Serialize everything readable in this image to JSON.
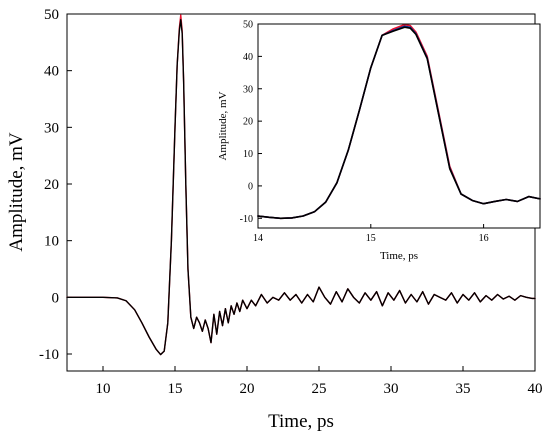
{
  "chart_data": [
    {
      "id": "main",
      "type": "line",
      "xlabel": "Time, ps",
      "ylabel": "Amplitude, mV",
      "xlim": [
        7.5,
        40
      ],
      "ylim": [
        -13,
        50
      ],
      "xticks": [
        10,
        15,
        20,
        25,
        30,
        35,
        40
      ],
      "yticks": [
        -10,
        0,
        10,
        20,
        30,
        40,
        50
      ],
      "xtick_labels": [
        "10",
        "15",
        "20",
        "25",
        "30",
        "35",
        "40"
      ],
      "ytick_labels": [
        "-10",
        "0",
        "10",
        "20",
        "30",
        "40",
        "50"
      ],
      "series": [
        {
          "color": "#e8112d",
          "x": [
            7.5,
            10,
            11,
            11.6,
            12.2,
            12.7,
            13.2,
            13.7,
            14.0,
            14.25,
            14.5,
            14.75,
            15.0,
            15.15,
            15.3,
            15.4,
            15.5,
            15.6,
            15.75,
            15.9,
            16.1,
            16.3,
            16.5,
            16.7,
            16.9,
            17.1,
            17.3,
            17.5,
            17.7,
            17.9,
            18.1,
            18.3,
            18.5,
            18.7,
            18.9,
            19.1,
            19.3,
            19.5,
            19.7,
            20.0,
            20.3,
            20.6,
            21.0,
            21.4,
            21.8,
            22.2,
            22.6,
            23.0,
            23.4,
            23.8,
            24.2,
            24.6,
            25.0,
            25.4,
            25.8,
            26.2,
            26.6,
            27.0,
            27.4,
            27.8,
            28.2,
            28.6,
            29.0,
            29.4,
            29.8,
            30.2,
            30.6,
            31.0,
            31.4,
            31.8,
            32.2,
            32.6,
            33.0,
            33.4,
            33.8,
            34.2,
            34.6,
            35.0,
            35.4,
            35.8,
            36.2,
            36.6,
            37.0,
            37.4,
            37.8,
            38.2,
            38.6,
            39.0,
            39.4,
            39.8,
            40.0
          ],
          "y": [
            0,
            0,
            -0.1,
            -0.6,
            -2.2,
            -4.5,
            -7.0,
            -9.2,
            -10.1,
            -9.5,
            -4.5,
            10.0,
            30.0,
            41.0,
            47.5,
            49.8,
            47.0,
            38.0,
            20.0,
            5.0,
            -3.5,
            -5.5,
            -3.5,
            -4.5,
            -6.0,
            -4.0,
            -5.5,
            -8.0,
            -3.0,
            -6.5,
            -2.5,
            -5.0,
            -2.0,
            -4.5,
            -1.5,
            -3.0,
            -1.0,
            -2.5,
            -0.5,
            -2.0,
            -0.5,
            -1.5,
            0.5,
            -1.0,
            0.0,
            -0.5,
            0.8,
            -0.5,
            0.5,
            -1.0,
            0.5,
            -0.8,
            1.8,
            0.0,
            -1.2,
            1.0,
            -0.8,
            1.5,
            0.0,
            -1.0,
            0.8,
            -0.5,
            1.0,
            -1.5,
            0.8,
            -0.5,
            1.2,
            -1.0,
            0.5,
            -0.8,
            1.0,
            -1.2,
            0.5,
            0.0,
            -0.5,
            0.8,
            -1.0,
            0.5,
            -0.5,
            0.8,
            -0.8,
            0.3,
            -0.5,
            0.5,
            -0.3,
            0.2,
            -0.5,
            0.3,
            0.0,
            -0.2,
            -0.2
          ]
        },
        {
          "color": "#000000",
          "x": [
            7.5,
            10,
            11,
            11.6,
            12.2,
            12.7,
            13.2,
            13.7,
            14.0,
            14.25,
            14.5,
            14.75,
            15.0,
            15.15,
            15.3,
            15.4,
            15.5,
            15.6,
            15.75,
            15.9,
            16.1,
            16.3,
            16.5,
            16.7,
            16.9,
            17.1,
            17.3,
            17.5,
            17.7,
            17.9,
            18.1,
            18.3,
            18.5,
            18.7,
            18.9,
            19.1,
            19.3,
            19.5,
            19.7,
            20.0,
            20.3,
            20.6,
            21.0,
            21.4,
            21.8,
            22.2,
            22.6,
            23.0,
            23.4,
            23.8,
            24.2,
            24.6,
            25.0,
            25.4,
            25.8,
            26.2,
            26.6,
            27.0,
            27.4,
            27.8,
            28.2,
            28.6,
            29.0,
            29.4,
            29.8,
            30.2,
            30.6,
            31.0,
            31.4,
            31.8,
            32.2,
            32.6,
            33.0,
            33.4,
            33.8,
            34.2,
            34.6,
            35.0,
            35.4,
            35.8,
            36.2,
            36.6,
            37.0,
            37.4,
            37.8,
            38.2,
            38.6,
            39.0,
            39.4,
            39.8,
            40.0
          ],
          "y": [
            0,
            0,
            -0.1,
            -0.6,
            -2.2,
            -4.5,
            -7.0,
            -9.2,
            -10.1,
            -9.5,
            -4.5,
            10.0,
            30.0,
            41.0,
            47.0,
            49.0,
            46.5,
            38.0,
            20.0,
            5.0,
            -3.5,
            -5.5,
            -3.5,
            -4.5,
            -6.0,
            -4.0,
            -5.5,
            -8.0,
            -3.0,
            -6.5,
            -2.5,
            -5.0,
            -2.0,
            -4.5,
            -1.5,
            -3.0,
            -1.0,
            -2.5,
            -0.5,
            -2.0,
            -0.5,
            -1.5,
            0.5,
            -1.0,
            0.0,
            -0.5,
            0.8,
            -0.5,
            0.5,
            -1.0,
            0.5,
            -0.8,
            1.8,
            0.0,
            -1.2,
            1.0,
            -0.8,
            1.5,
            0.0,
            -1.0,
            0.8,
            -0.5,
            1.0,
            -1.5,
            0.8,
            -0.5,
            1.2,
            -1.0,
            0.5,
            -0.8,
            1.0,
            -1.2,
            0.5,
            0.0,
            -0.5,
            0.8,
            -1.0,
            0.5,
            -0.5,
            0.8,
            -0.8,
            0.3,
            -0.5,
            0.5,
            -0.3,
            0.2,
            -0.5,
            0.3,
            0.0,
            -0.2,
            -0.2
          ]
        }
      ]
    },
    {
      "id": "inset",
      "type": "line",
      "xlabel": "Time, ps",
      "ylabel": "Amplitude, mV",
      "xlim": [
        14,
        16.5
      ],
      "ylim": [
        -13,
        50
      ],
      "xticks": [
        14,
        15,
        16
      ],
      "yticks": [
        -10,
        0,
        10,
        20,
        30,
        40,
        50
      ],
      "xtick_labels": [
        "14",
        "15",
        "16"
      ],
      "ytick_labels": [
        "-10",
        "0",
        "10",
        "20",
        "30",
        "40",
        "50"
      ],
      "series": [
        {
          "color": "#e8112d",
          "x": [
            14.0,
            14.1,
            14.2,
            14.3,
            14.4,
            14.5,
            14.6,
            14.7,
            14.8,
            14.9,
            15.0,
            15.1,
            15.2,
            15.3,
            15.35,
            15.4,
            15.5,
            15.6,
            15.7,
            15.8,
            15.9,
            16.0,
            16.1,
            16.2,
            16.3,
            16.4,
            16.5
          ],
          "y": [
            -9.3,
            -9.7,
            -10.0,
            -9.9,
            -9.3,
            -8.0,
            -5.0,
            1.0,
            11.0,
            23.5,
            36.5,
            46.5,
            48.5,
            49.8,
            49.5,
            47.5,
            40.0,
            23.0,
            6.0,
            -2.5,
            -4.5,
            -5.5,
            -4.8,
            -4.2,
            -4.8,
            -3.3,
            -4.0
          ]
        },
        {
          "color": "#0b2a8f",
          "x": [
            14.0,
            14.1,
            14.2,
            14.3,
            14.4,
            14.5,
            14.6,
            14.7,
            14.8,
            14.9,
            15.0,
            15.1,
            15.2,
            15.3,
            15.35,
            15.4,
            15.5,
            15.6,
            15.7,
            15.8,
            15.9,
            16.0,
            16.1,
            16.2,
            16.3,
            16.4,
            16.5
          ],
          "y": [
            -9.3,
            -9.7,
            -10.0,
            -9.9,
            -9.3,
            -8.0,
            -5.0,
            1.0,
            11.0,
            23.5,
            36.5,
            46.5,
            48.0,
            49.3,
            49.0,
            47.0,
            39.5,
            22.5,
            5.5,
            -2.5,
            -4.5,
            -5.5,
            -4.8,
            -4.2,
            -4.8,
            -3.3,
            -4.0
          ]
        },
        {
          "color": "#000000",
          "x": [
            14.0,
            14.1,
            14.2,
            14.3,
            14.4,
            14.5,
            14.6,
            14.7,
            14.8,
            14.9,
            15.0,
            15.1,
            15.2,
            15.3,
            15.35,
            15.4,
            15.5,
            15.6,
            15.7,
            15.8,
            15.9,
            16.0,
            16.1,
            16.2,
            16.3,
            16.4,
            16.5
          ],
          "y": [
            -9.3,
            -9.7,
            -10.0,
            -9.9,
            -9.3,
            -8.0,
            -5.0,
            1.0,
            11.0,
            23.5,
            36.5,
            46.5,
            47.8,
            49.0,
            48.7,
            46.8,
            39.3,
            22.3,
            5.3,
            -2.5,
            -4.5,
            -5.5,
            -4.8,
            -4.2,
            -4.8,
            -3.3,
            -4.0
          ]
        }
      ]
    }
  ]
}
